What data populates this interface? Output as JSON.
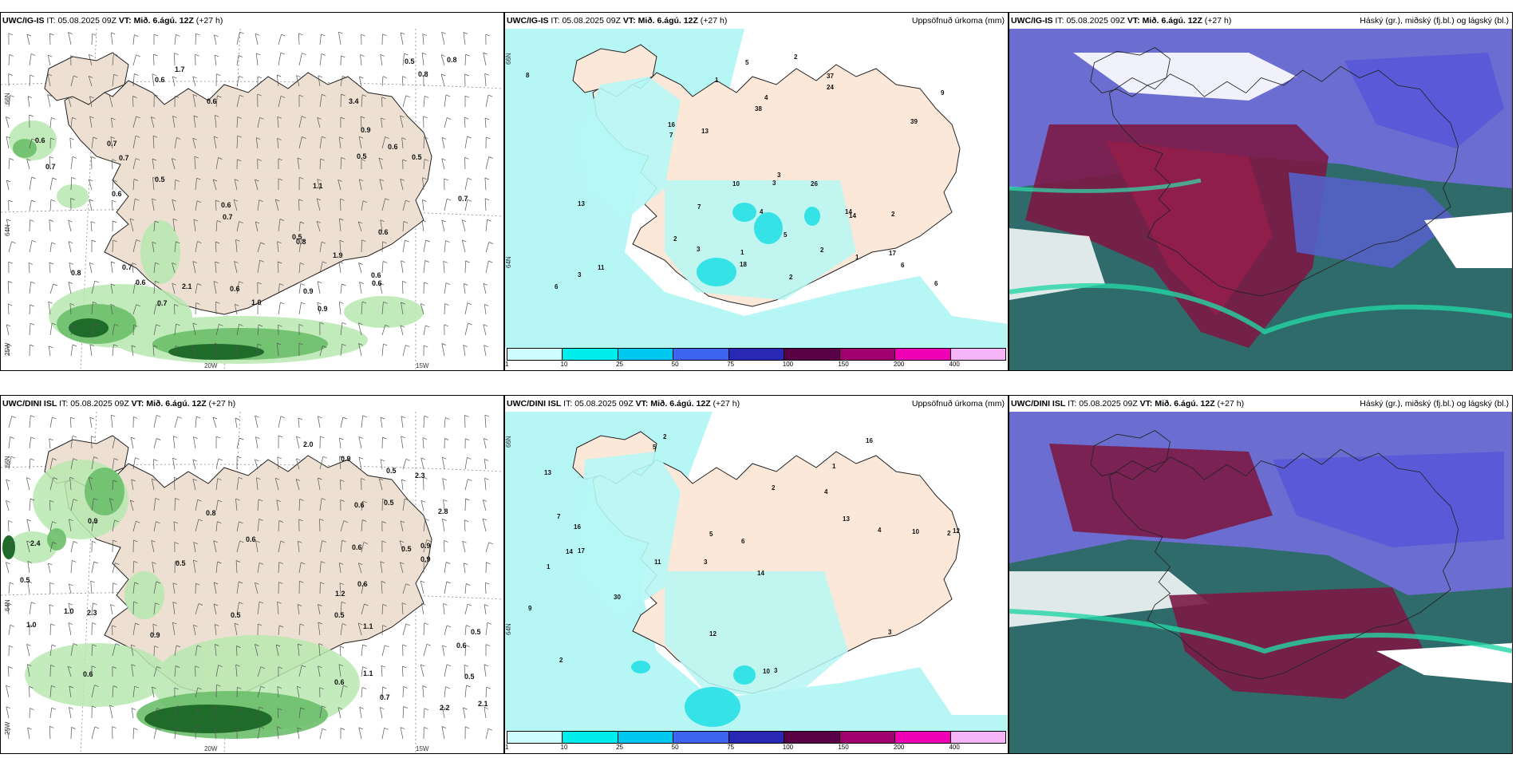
{
  "panels": [
    {
      "id": "igis_wind",
      "header": {
        "model": "UWC/IG-IS",
        "it_label": "IT:",
        "it_value": "05.08.2025 09Z",
        "vt_label": "VT:",
        "vt_value": "Mið. 6.ágú. 12Z",
        "lead": "(+27 h)",
        "right": ""
      },
      "lat_labels": [
        "66N",
        "64N",
        "25W"
      ],
      "lon_labels": [
        "20W",
        "15W"
      ],
      "values": [
        "0.9",
        "0.6",
        "0.7",
        "0.7",
        "0.6",
        "0.9",
        "0.7",
        "0.5",
        "0.7",
        "0.6",
        "0.8",
        "0.6",
        "0.6",
        "0.5",
        "0.5",
        "0.5",
        "0.7",
        "0.8",
        "0.6",
        "0.5",
        "0.6",
        "0.8",
        "0.7",
        "0.6",
        "1.1",
        "0.9",
        "0.6",
        "0.7",
        "1.0",
        "0.6",
        "1.9",
        "0.8",
        "3.4",
        "2.1",
        "1.7",
        "0.6"
      ]
    },
    {
      "id": "igis_precip",
      "header": {
        "model": "UWC/IG-IS",
        "it_label": "IT:",
        "it_value": "05.08.2025 09Z",
        "vt_label": "VT:",
        "vt_value": "Mið. 6.ágú. 12Z",
        "lead": "(+27 h)",
        "right": "Uppsöfnuð úrkoma (mm)"
      },
      "lat_labels": [
        "66N",
        "64N"
      ],
      "values": [
        "3",
        "2",
        "3",
        "4",
        "1",
        "2",
        "17",
        "37",
        "1",
        "2",
        "6",
        "7",
        "3",
        "5",
        "2",
        "16",
        "14",
        "13",
        "10",
        "9",
        "8",
        "11",
        "18",
        "26",
        "14",
        "24",
        "13",
        "38",
        "39",
        "5",
        "6",
        "7",
        "4",
        "6",
        "3",
        "2",
        "1"
      ],
      "colorbar": {
        "colors": [
          "#cffcfc",
          "#00eded",
          "#00c8f0",
          "#3c64f0",
          "#2828b4",
          "#5a0046",
          "#a0006e",
          "#f000b4",
          "#f5b4f5"
        ],
        "ticks": [
          "1",
          "10",
          "25",
          "50",
          "75",
          "100",
          "150",
          "200",
          "400"
        ]
      }
    },
    {
      "id": "igis_cloud",
      "header": {
        "model": "UWC/IG-IS",
        "it_label": "IT:",
        "it_value": "05.08.2025 09Z",
        "vt_label": "VT:",
        "vt_value": "Mið. 6.ágú. 12Z",
        "lead": "(+27 h)",
        "right": "Háský (gr.), miðský (fj.bl.) og lágský (bl.)"
      }
    },
    {
      "id": "dini_wind",
      "header": {
        "model": "UWC/DINI ISL",
        "it_label": "IT:",
        "it_value": "05.08.2025 09Z",
        "vt_label": "VT:",
        "vt_value": "Mið. 6.ágú. 12Z",
        "lead": "(+27 h)",
        "right": ""
      },
      "lat_labels": [
        "66N",
        "64N",
        "25W"
      ],
      "lon_labels": [
        "20W",
        "15W"
      ],
      "values": [
        "0.5",
        "0.5",
        "0.5",
        "0.6",
        "0.6",
        "0.5",
        "0.9",
        "0.6",
        "0.5",
        "0.7",
        "0.6",
        "1.2",
        "1.0",
        "1.1",
        "0.9",
        "2.2",
        "2.3",
        "1.0",
        "0.5",
        "0.8",
        "0.5",
        "0.5",
        "0.6",
        "0.9",
        "0.9",
        "0.6",
        "0.9",
        "0.6",
        "2.1",
        "2.3",
        "2.8",
        "2.0",
        "2.4",
        "1.1",
        "0.5"
      ]
    },
    {
      "id": "dini_precip",
      "header": {
        "model": "UWC/DINI ISL",
        "it_label": "IT:",
        "it_value": "05.08.2025 09Z",
        "vt_label": "VT:",
        "vt_value": "Mið. 6.ágú. 12Z",
        "lead": "(+27 h)",
        "right": "Uppsöfnuð úrkoma (mm)"
      },
      "lat_labels": [
        "66N",
        "64N"
      ],
      "values": [
        "2",
        "1",
        "2",
        "3",
        "14",
        "17",
        "13",
        "4",
        "1",
        "2",
        "6",
        "2",
        "5",
        "11",
        "10",
        "3",
        "12",
        "16",
        "13",
        "30",
        "16",
        "14",
        "12",
        "10",
        "9",
        "7",
        "5",
        "4",
        "3"
      ],
      "colorbar": {
        "colors": [
          "#cffcfc",
          "#00eded",
          "#00c8f0",
          "#3c64f0",
          "#2828b4",
          "#5a0046",
          "#a0006e",
          "#f000b4",
          "#f5b4f5"
        ],
        "ticks": [
          "1",
          "10",
          "25",
          "50",
          "75",
          "100",
          "150",
          "200",
          "400"
        ]
      }
    },
    {
      "id": "dini_cloud",
      "header": {
        "model": "UWC/DINI ISL",
        "it_label": "IT:",
        "it_value": "05.08.2025 09Z",
        "vt_label": "VT:",
        "vt_value": "Mið. 6.ágú. 12Z",
        "lead": "(+27 h)",
        "right": "Háský (gr.), miðský (fj.bl.) og lágský (bl.)"
      }
    }
  ]
}
